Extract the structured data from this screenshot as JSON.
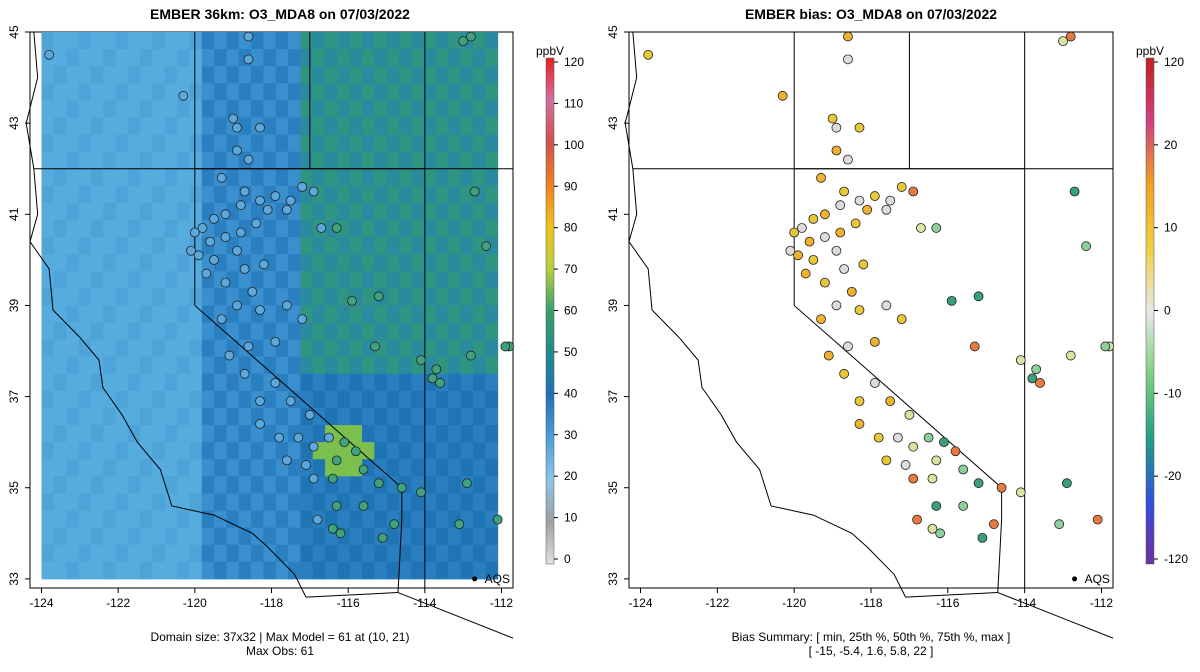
{
  "left_panel": {
    "title": "EMBER 36km: O3_MDA8 on 07/03/2022",
    "footer_line1": "Domain size: 37x32 | Max Model = 61 at (10, 21)",
    "footer_line2": "Max Obs: 61",
    "colorbar_unit": "ppbV",
    "colorbar_ticks": [
      "120",
      "110",
      "100",
      "90",
      "80",
      "70",
      "60",
      "50",
      "40",
      "30",
      "20",
      "10",
      "0"
    ],
    "marker_label": "AQS"
  },
  "right_panel": {
    "title": "EMBER bias: O3_MDA8 on 07/03/2022",
    "footer_line1": "Bias Summary: [ min, 25th %, 50th %, 75th %, max ]",
    "footer_line2": "[ -15,   -5.4,   1.6,   5.8,   22 ]",
    "colorbar_unit": "ppbV",
    "colorbar_ticks": [
      "120",
      "20",
      "10",
      "0",
      "-10",
      "-20",
      "-120"
    ],
    "marker_label": "AQS"
  },
  "axes": {
    "x_ticks": [
      "-124",
      "-122",
      "-120",
      "-118",
      "-116",
      "-114",
      "-112"
    ],
    "y_ticks": [
      "45",
      "43",
      "41",
      "39",
      "37",
      "35",
      "33"
    ]
  },
  "map_data": {
    "lon_range": [
      -124.3,
      -111.7
    ],
    "lat_range": [
      32.8,
      45.0
    ],
    "stations": [
      [
        -123.8,
        44.5
      ],
      [
        -118.6,
        44.9
      ],
      [
        -118.6,
        44.4
      ],
      [
        -120.3,
        43.6
      ],
      [
        -119,
        43.1
      ],
      [
        -118.9,
        42.9
      ],
      [
        -118.3,
        42.9
      ],
      [
        -118.9,
        42.4
      ],
      [
        -118.6,
        42.2
      ],
      [
        -119.3,
        41.8
      ],
      [
        -118.7,
        41.5
      ],
      [
        -118.3,
        41.3
      ],
      [
        -117.9,
        41.4
      ],
      [
        -118.1,
        41.1
      ],
      [
        -118.8,
        41.2
      ],
      [
        -119.2,
        41.0
      ],
      [
        -119.5,
        40.9
      ],
      [
        -119.8,
        40.7
      ],
      [
        -120,
        40.6
      ],
      [
        -119.6,
        40.4
      ],
      [
        -119.2,
        40.5
      ],
      [
        -118.8,
        40.6
      ],
      [
        -118.4,
        40.8
      ],
      [
        -118.9,
        40.2
      ],
      [
        -119.5,
        40.0
      ],
      [
        -119.9,
        40.1
      ],
      [
        -120.1,
        40.2
      ],
      [
        -119.7,
        39.7
      ],
      [
        -119.2,
        39.5
      ],
      [
        -118.7,
        39.8
      ],
      [
        -118.2,
        39.9
      ],
      [
        -118.5,
        39.3
      ],
      [
        -118.9,
        39.0
      ],
      [
        -119.3,
        38.7
      ],
      [
        -118.3,
        38.9
      ],
      [
        -117.6,
        39.0
      ],
      [
        -117.2,
        38.7
      ],
      [
        -117.9,
        38.2
      ],
      [
        -118.6,
        38.1
      ],
      [
        -119.1,
        37.9
      ],
      [
        -118.7,
        37.5
      ],
      [
        -117.9,
        37.3
      ],
      [
        -118.3,
        36.9
      ],
      [
        -117.5,
        36.9
      ],
      [
        -117,
        36.6
      ],
      [
        -118.3,
        36.4
      ],
      [
        -117.8,
        36.1
      ],
      [
        -117.3,
        36.1
      ],
      [
        -116.9,
        35.9
      ],
      [
        -116.5,
        36.1
      ],
      [
        -116.1,
        36.0
      ],
      [
        -115.8,
        35.8
      ],
      [
        -116.3,
        35.6
      ],
      [
        -117.1,
        35.5
      ],
      [
        -117.6,
        35.6
      ],
      [
        -116.9,
        35.2
      ],
      [
        -116.4,
        35.2
      ],
      [
        -115.6,
        35.4
      ],
      [
        -115.2,
        35.1
      ],
      [
        -114.6,
        35.0
      ],
      [
        -114.1,
        34.9
      ],
      [
        -115.6,
        34.6
      ],
      [
        -116.3,
        34.6
      ],
      [
        -116.8,
        34.3
      ],
      [
        -116.4,
        34.1
      ],
      [
        -116.2,
        34.0
      ],
      [
        -115.1,
        33.9
      ],
      [
        -114.8,
        34.2
      ],
      [
        -116.7,
        40.7
      ],
      [
        -116.3,
        40.7
      ],
      [
        -115.2,
        39.2
      ],
      [
        -115.3,
        38.1
      ],
      [
        -114.1,
        37.8
      ],
      [
        -113.7,
        37.6
      ],
      [
        -113.8,
        37.4
      ],
      [
        -113.6,
        37.3
      ],
      [
        -112.8,
        37.9
      ],
      [
        -112.4,
        40.3
      ],
      [
        -112.7,
        41.5
      ],
      [
        -112.8,
        44.9
      ],
      [
        -113.0,
        44.8
      ],
      [
        -113.1,
        34.2
      ],
      [
        -112.9,
        35.1
      ],
      [
        -112.1,
        34.3
      ],
      [
        -111.8,
        38.1
      ],
      [
        -111.9,
        38.1
      ],
      [
        -117.6,
        41.1
      ],
      [
        -116.9,
        41.5
      ],
      [
        -117.2,
        41.6
      ],
      [
        -117.5,
        41.3
      ],
      [
        -115.9,
        39.1
      ]
    ]
  }
}
